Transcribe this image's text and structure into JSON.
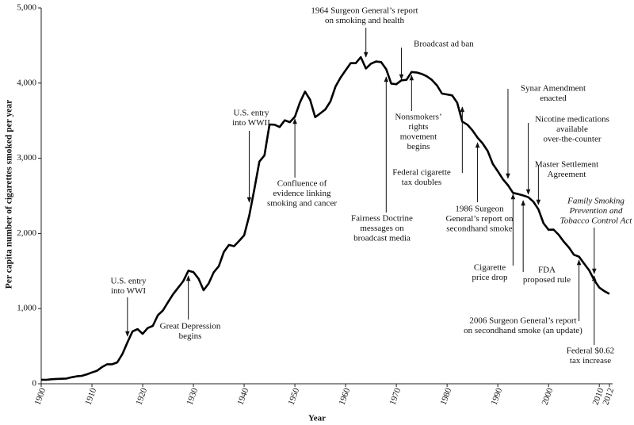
{
  "chart_data": {
    "type": "line",
    "x_label": "Year",
    "y_label": "Per capita number of cigarettes smoked per year",
    "x": [
      1900,
      1901,
      1902,
      1903,
      1904,
      1905,
      1906,
      1907,
      1908,
      1909,
      1910,
      1911,
      1912,
      1913,
      1914,
      1915,
      1916,
      1917,
      1918,
      1919,
      1920,
      1921,
      1922,
      1923,
      1924,
      1925,
      1926,
      1927,
      1928,
      1929,
      1930,
      1931,
      1932,
      1933,
      1934,
      1935,
      1936,
      1937,
      1938,
      1939,
      1940,
      1941,
      1942,
      1943,
      1944,
      1945,
      1946,
      1947,
      1948,
      1949,
      1950,
      1951,
      1952,
      1953,
      1954,
      1955,
      1956,
      1957,
      1958,
      1959,
      1960,
      1961,
      1962,
      1963,
      1964,
      1965,
      1966,
      1967,
      1968,
      1969,
      1970,
      1971,
      1972,
      1973,
      1974,
      1975,
      1976,
      1977,
      1978,
      1979,
      1980,
      1981,
      1982,
      1983,
      1984,
      1985,
      1986,
      1987,
      1988,
      1989,
      1990,
      1991,
      1992,
      1993,
      1994,
      1995,
      1996,
      1997,
      1998,
      1999,
      2000,
      2001,
      2002,
      2003,
      2004,
      2005,
      2006,
      2007,
      2008,
      2009,
      2010,
      2011,
      2012
    ],
    "series": [
      {
        "name": "Per capita cigarettes",
        "color": "#000000",
        "values": [
          54,
          53,
          60,
          64,
          66,
          70,
          86,
          99,
          105,
          125,
          151,
          173,
          223,
          260,
          259,
          285,
          395,
          551,
          697,
          727,
          665,
          742,
          770,
          911,
          976,
          1085,
          1191,
          1279,
          1366,
          1504,
          1485,
          1399,
          1245,
          1334,
          1483,
          1564,
          1754,
          1847,
          1830,
          1900,
          1976,
          2236,
          2585,
          2956,
          3039,
          3449,
          3446,
          3416,
          3505,
          3480,
          3552,
          3744,
          3886,
          3778,
          3546,
          3597,
          3650,
          3755,
          3953,
          4073,
          4171,
          4266,
          4265,
          4345,
          4194,
          4258,
          4287,
          4280,
          4186,
          3993,
          3985,
          4037,
          4043,
          4148,
          4141,
          4122,
          4091,
          4043,
          3970,
          3861,
          3849,
          3836,
          3739,
          3488,
          3446,
          3370,
          3274,
          3197,
          3096,
          2926,
          2826,
          2720,
          2641,
          2539,
          2524,
          2505,
          2482,
          2423,
          2320,
          2136,
          2049,
          2051,
          1982,
          1890,
          1814,
          1716,
          1691,
          1599,
          1509,
          1380,
          1280,
          1232,
          1196
        ]
      }
    ],
    "xlim": [
      1900,
      2012
    ],
    "xticks": [
      1900,
      1910,
      1920,
      1930,
      1940,
      1950,
      1960,
      1970,
      1980,
      1990,
      2000,
      2010,
      2012
    ],
    "ylim": [
      0,
      5000
    ],
    "yticks": [
      0,
      {
        "value": 1000,
        "label": "1,000"
      },
      {
        "value": 2000,
        "label": "2,000"
      },
      {
        "value": 3000,
        "label": "3,000"
      },
      {
        "value": 4000,
        "label": "4,000"
      },
      {
        "value": 5000,
        "label": "5,000"
      }
    ],
    "annotations": [
      {
        "lines": [
          "U.S. entry",
          "into WWI"
        ],
        "x": 1917
      },
      {
        "lines": [
          "Great Depression",
          "begins"
        ],
        "x": 1929
      },
      {
        "lines": [
          "U.S. entry",
          "into WWII"
        ],
        "x": 1941
      },
      {
        "lines": [
          "Confluence of",
          "evidence linking",
          "smoking and cancer"
        ],
        "x": 1950
      },
      {
        "lines": [
          "1964 Surgeon General’s report",
          "on smoking and health"
        ],
        "x": 1964
      },
      {
        "lines": [
          "Broadcast ad ban"
        ],
        "x": 1971
      },
      {
        "lines": [
          "Fairness Doctrine",
          "messages on",
          "broadcast media"
        ],
        "x": 1968
      },
      {
        "lines": [
          "Nonsmokers’",
          "rights",
          "movement",
          "begins"
        ],
        "x": 1973
      },
      {
        "lines": [
          "Federal cigarette",
          "tax doubles"
        ],
        "x": 1983
      },
      {
        "lines": [
          "1986 Surgeon",
          "General’s report on",
          "secondhand smoke"
        ],
        "x": 1986
      },
      {
        "lines": [
          "Synar Amendment",
          "enacted"
        ],
        "x": 1992
      },
      {
        "lines": [
          "Nicotine medications",
          "available",
          "over-the-counter"
        ],
        "x": 1996
      },
      {
        "lines": [
          "Master Settlement",
          "Agreement"
        ],
        "x": 1998
      },
      {
        "lines": [
          "Family Smoking",
          "Prevention and",
          "Tobacco Control Act"
        ],
        "x": 2009
      },
      {
        "lines": [
          "Cigarette",
          "price drop"
        ],
        "x": 1993
      },
      {
        "lines": [
          "FDA",
          "proposed rule"
        ],
        "x": 1995
      },
      {
        "lines": [
          "2006 Surgeon General’s report",
          "on secondhand smoke (an update)"
        ],
        "x": 2006
      },
      {
        "lines": [
          "Federal $0.62",
          "tax increase"
        ],
        "x": 2009
      }
    ]
  }
}
